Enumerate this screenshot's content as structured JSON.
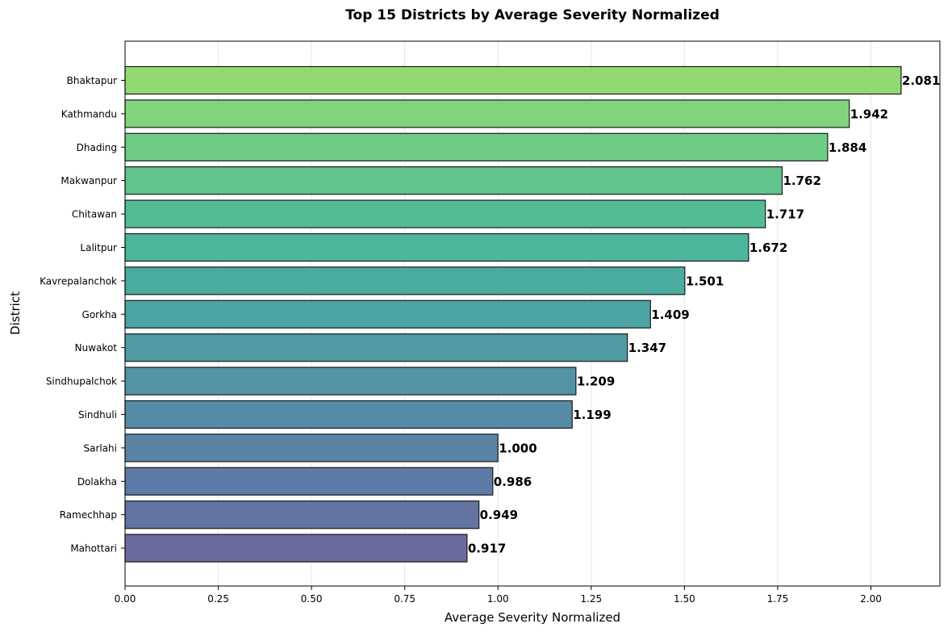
{
  "chart_data": {
    "type": "bar",
    "orientation": "horizontal",
    "title": "Top 15 Districts by Average Severity Normalized",
    "xlabel": "Average Severity Normalized",
    "ylabel": "District",
    "xlim": [
      0,
      2.185
    ],
    "x_ticks": [
      "0.00",
      "0.25",
      "0.50",
      "0.75",
      "1.00",
      "1.25",
      "1.50",
      "1.75",
      "2.00"
    ],
    "grid": "vertical",
    "categories": [
      "Bhaktapur",
      "Kathmandu",
      "Dhading",
      "Makwanpur",
      "Chitawan",
      "Lalitpur",
      "Kavrepalanchok",
      "Gorkha",
      "Nuwakot",
      "Sindhupalchok",
      "Sindhuli",
      "Sarlahi",
      "Dolakha",
      "Ramechhap",
      "Mahottari"
    ],
    "values": [
      2.081,
      1.942,
      1.884,
      1.762,
      1.717,
      1.672,
      1.501,
      1.409,
      1.347,
      1.209,
      1.199,
      1.0,
      0.986,
      0.949,
      0.917
    ],
    "value_labels": [
      "2.081",
      "1.942",
      "1.884",
      "1.762",
      "1.717",
      "1.672",
      "1.501",
      "1.409",
      "1.347",
      "1.209",
      "1.199",
      "1.000",
      "0.986",
      "0.949",
      "0.917"
    ],
    "colors": [
      "#93d973",
      "#80d47b",
      "#6ecc85",
      "#60c48c",
      "#54bc94",
      "#4db59b",
      "#4aac9f",
      "#4ca4a2",
      "#4f9ca3",
      "#5394a4",
      "#568ba5",
      "#5a84a6",
      "#5d7ba6",
      "#6373a2",
      "#696b9f"
    ]
  }
}
